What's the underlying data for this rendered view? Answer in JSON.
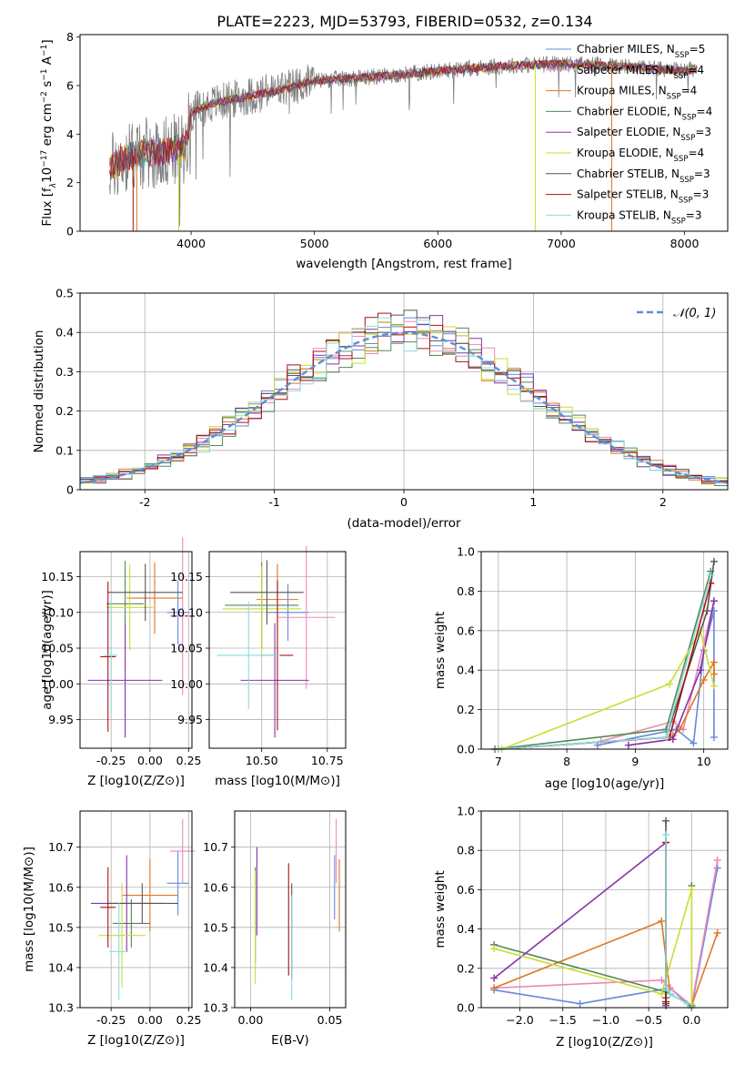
{
  "figure": {
    "title": "PLATE=2223, MJD=53793, FIBERID=0532, z=0.134"
  },
  "colors": [
    "#6688dd",
    "#ee88bb",
    "#dd7722",
    "#558855",
    "#8833aa",
    "#ccdd33",
    "#555555",
    "#aa1111",
    "#88dddd"
  ],
  "chart_data": [
    {
      "panel": "spectrum",
      "type": "line",
      "title": "PLATE=2223, MJD=53793, FIBERID=0532, z=0.134",
      "xlabel": "wavelength [Angstrom, rest frame]",
      "ylabel_parts": [
        "Flux [f",
        "λ",
        "10",
        "−17",
        " erg cm",
        "−2",
        " s",
        "−1",
        " A",
        "−1",
        "]"
      ],
      "xlim": [
        3100,
        8350
      ],
      "ylim": [
        0,
        8.1
      ],
      "xticks": [
        4000,
        5000,
        6000,
        7000,
        8000
      ],
      "yticks": [
        0,
        2,
        4,
        6,
        8
      ],
      "grid": false,
      "legend_position": "top-right",
      "legend": [
        {
          "name": "Chabrier MILES",
          "n": "5"
        },
        {
          "name": "Salpeter MILES",
          "n": "4"
        },
        {
          "name": "Kroupa MILES",
          "n": "4"
        },
        {
          "name": "Chabrier ELODIE",
          "n": "4"
        },
        {
          "name": "Salpeter ELODIE",
          "n": "3"
        },
        {
          "name": "Kroupa ELODIE",
          "n": "4"
        },
        {
          "name": "Chabrier STELIB",
          "n": "3"
        },
        {
          "name": "Salpeter STELIB",
          "n": "3"
        },
        {
          "name": "Kroupa STELIB",
          "n": "3"
        }
      ],
      "continuum": {
        "x": [
          3340,
          3500,
          3650,
          3800,
          3950,
          4000,
          4200,
          4500,
          4800,
          5000,
          5300,
          5600,
          6000,
          6500,
          7000,
          7500,
          8000,
          8100
        ],
        "y": [
          2.6,
          3.1,
          3.2,
          3.3,
          3.4,
          4.9,
          5.3,
          5.6,
          5.9,
          6.2,
          6.3,
          6.4,
          6.6,
          6.8,
          6.9,
          6.8,
          6.6,
          6.7
        ]
      },
      "dropouts": [
        {
          "x": 3530,
          "color_index": 7
        },
        {
          "x": 3560,
          "color_index": 2
        },
        {
          "x": 3900,
          "color_index": 5
        },
        {
          "x": 6790,
          "color_index": 5
        },
        {
          "x": 7410,
          "color_index": 2
        }
      ]
    },
    {
      "panel": "residuals",
      "type": "line",
      "xlabel": "(data-model)/error",
      "ylabel": "Normed distribution",
      "xlim": [
        -2.5,
        2.5
      ],
      "ylim": [
        0,
        0.5
      ],
      "xticks": [
        -2,
        -1,
        0,
        1,
        2
      ],
      "yticks": [
        0.0,
        0.1,
        0.2,
        0.3,
        0.4,
        0.5
      ],
      "grid": true,
      "legend": [
        "𝒩(0, 1)"
      ],
      "legend_position": "top-right",
      "bin_width": 0.1
    },
    {
      "panel": "age_vs_Z",
      "type": "scatter",
      "xlabel": "Z [log10(Z/Z⊙)]",
      "ylabel": "age  [log10(age/yr)]",
      "xlim": [
        -0.45,
        0.27
      ],
      "ylim": [
        9.91,
        10.185
      ],
      "xticks": [
        "-0.25",
        "0.00",
        "0.25"
      ],
      "xtick_values": [
        -0.25,
        0,
        0.25
      ],
      "yticks": [
        "9.95",
        "10.00",
        "10.05",
        "10.10",
        "10.15"
      ],
      "ytick_values": [
        9.95,
        10.0,
        10.05,
        10.1,
        10.15
      ],
      "grid": true,
      "points": [
        {
          "x": 0.18,
          "y": 10.1,
          "xerr": 0.07,
          "yerr": 0.045
        },
        {
          "x": 0.21,
          "y": 10.095,
          "xerr": 0.08,
          "yerr": 0.11
        },
        {
          "x": 0.03,
          "y": 10.12,
          "xerr": 0.18,
          "yerr": 0.05
        },
        {
          "x": -0.16,
          "y": 10.112,
          "xerr": 0.12,
          "yerr": 0.06
        },
        {
          "x": -0.16,
          "y": 10.005,
          "xerr": 0.24,
          "yerr": 0.08
        },
        {
          "x": -0.13,
          "y": 10.107,
          "xerr": 0.15,
          "yerr": 0.06
        },
        {
          "x": -0.03,
          "y": 10.128,
          "xerr": 0.24,
          "yerr": 0.04
        },
        {
          "x": -0.27,
          "y": 10.038,
          "xerr": 0.05,
          "yerr": 0.105
        },
        {
          "x": -0.25,
          "y": 10.04,
          "xerr": 0.04,
          "yerr": 0.08
        }
      ]
    },
    {
      "panel": "age_vs_mass",
      "type": "scatter",
      "xlabel": "mass [log10(M/M⊙)]",
      "ylabel": "",
      "xlim": [
        10.3,
        10.82
      ],
      "ylim": [
        9.91,
        10.185
      ],
      "xticks": [
        "10.50",
        "10.75"
      ],
      "xtick_values": [
        10.5,
        10.75
      ],
      "yticks": [
        "9.95",
        "10.00",
        "10.05",
        "10.10",
        "10.15"
      ],
      "ytick_values": [
        9.95,
        10.0,
        10.05,
        10.1,
        10.15
      ],
      "grid": true,
      "points": [
        {
          "x": 10.6,
          "y": 10.1,
          "xerr": 0.08,
          "yerr": 0.04
        },
        {
          "x": 10.67,
          "y": 10.093,
          "xerr": 0.11,
          "yerr": 0.1
        },
        {
          "x": 10.56,
          "y": 10.118,
          "xerr": 0.08,
          "yerr": 0.05
        },
        {
          "x": 10.5,
          "y": 10.11,
          "xerr": 0.14,
          "yerr": 0.06
        },
        {
          "x": 10.55,
          "y": 10.005,
          "xerr": 0.13,
          "yerr": 0.08
        },
        {
          "x": 10.5,
          "y": 10.105,
          "xerr": 0.15,
          "yerr": 0.06
        },
        {
          "x": 10.52,
          "y": 10.128,
          "xerr": 0.14,
          "yerr": 0.045
        },
        {
          "x": 10.56,
          "y": 10.04,
          "xerr": 0.06,
          "yerr": 0.105
        },
        {
          "x": 10.45,
          "y": 10.04,
          "xerr": 0.12,
          "yerr": 0.075
        }
      ]
    },
    {
      "panel": "mass_vs_Z",
      "type": "scatter",
      "xlabel": "Z [log10(Z/Z⊙)]",
      "ylabel": "mass [log10(M/M⊙)]",
      "xlim": [
        -0.45,
        0.27
      ],
      "ylim": [
        10.3,
        10.79
      ],
      "xticks": [
        "-0.25",
        "0.00",
        "0.25"
      ],
      "xtick_values": [
        -0.25,
        0,
        0.25
      ],
      "yticks": [
        "10.3",
        "10.4",
        "10.5",
        "10.6",
        "10.7"
      ],
      "ytick_values": [
        10.3,
        10.4,
        10.5,
        10.6,
        10.7
      ],
      "grid": true,
      "points": [
        {
          "x": 0.18,
          "y": 10.61,
          "xerr": 0.07,
          "yerr": 0.08
        },
        {
          "x": 0.21,
          "y": 10.69,
          "xerr": 0.08,
          "yerr": 0.08
        },
        {
          "x": 0.0,
          "y": 10.58,
          "xerr": 0.18,
          "yerr": 0.09
        },
        {
          "x": -0.12,
          "y": 10.51,
          "xerr": 0.12,
          "yerr": 0.06
        },
        {
          "x": -0.15,
          "y": 10.56,
          "xerr": 0.23,
          "yerr": 0.12
        },
        {
          "x": -0.18,
          "y": 10.48,
          "xerr": 0.15,
          "yerr": 0.13
        },
        {
          "x": -0.05,
          "y": 10.56,
          "xerr": 0.23,
          "yerr": 0.05
        },
        {
          "x": -0.27,
          "y": 10.55,
          "xerr": 0.05,
          "yerr": 0.1
        },
        {
          "x": -0.2,
          "y": 10.44,
          "xerr": 0.06,
          "yerr": 0.12
        }
      ]
    },
    {
      "panel": "mass_vs_EBV",
      "type": "scatter",
      "xlabel": "E(B-V)",
      "ylabel": "",
      "xlim": [
        -0.01,
        0.06
      ],
      "ylim": [
        10.3,
        10.79
      ],
      "xticks": [
        "0.00",
        "0.05"
      ],
      "xtick_values": [
        0,
        0.05
      ],
      "yticks": [
        "10.3",
        "10.4",
        "10.5",
        "10.6",
        "10.7"
      ],
      "ytick_values": [
        10.3,
        10.4,
        10.5,
        10.6,
        10.7
      ],
      "grid": true,
      "points": [
        {
          "x": 0.053,
          "y": 10.6,
          "yerr": 0.08
        },
        {
          "x": 0.054,
          "y": 10.69,
          "yerr": 0.08
        },
        {
          "x": 0.056,
          "y": 10.58,
          "yerr": 0.09
        },
        {
          "x": 0.003,
          "y": 10.53,
          "yerr": 0.12
        },
        {
          "x": 0.004,
          "y": 10.59,
          "yerr": 0.11
        },
        {
          "x": 0.003,
          "y": 10.5,
          "yerr": 0.14
        },
        {
          "x": 0.026,
          "y": 10.49,
          "yerr": 0.12
        },
        {
          "x": 0.024,
          "y": 10.52,
          "yerr": 0.14
        },
        {
          "x": 0.026,
          "y": 10.45,
          "yerr": 0.13
        }
      ]
    },
    {
      "panel": "weight_vs_age",
      "type": "line",
      "xlabel": "age  [log10(age/yr)]",
      "ylabel": "mass weight",
      "xlim": [
        6.75,
        10.35
      ],
      "ylim": [
        0,
        1.0
      ],
      "xticks": [
        "7",
        "8",
        "9",
        "10"
      ],
      "xtick_values": [
        7,
        8,
        9,
        10
      ],
      "yticks": [
        "0.0",
        "0.2",
        "0.4",
        "0.6",
        "0.8",
        "1.0"
      ],
      "ytick_values": [
        0,
        0.2,
        0.4,
        0.6,
        0.8,
        1.0
      ],
      "grid": true,
      "series": [
        {
          "x": [
            8.45,
            9.6,
            9.85,
            10.0,
            10.15,
            10.15
          ],
          "y": [
            0.02,
            0.1,
            0.03,
            0.5,
            0.7,
            0.06
          ]
        },
        {
          "x": [
            8.5,
            9.55,
            9.7,
            10.15
          ],
          "y": [
            0.04,
            0.14,
            0.1,
            0.75
          ]
        },
        {
          "x": [
            9.55,
            9.65,
            10.0,
            10.15,
            10.15
          ],
          "y": [
            0.07,
            0.1,
            0.35,
            0.44,
            0.38
          ]
        },
        {
          "x": [
            6.95,
            9.45,
            10.1
          ],
          "y": [
            0.0,
            0.1,
            0.9
          ]
        },
        {
          "x": [
            8.9,
            9.55,
            9.95,
            10.15
          ],
          "y": [
            0.02,
            0.05,
            0.4,
            0.75
          ]
        },
        {
          "x": [
            7.05,
            9.5,
            9.95,
            10.15
          ],
          "y": [
            0.0,
            0.33,
            0.6,
            0.32
          ]
        },
        {
          "x": [
            7.0,
            9.45,
            10.05,
            10.15
          ],
          "y": [
            0.0,
            0.06,
            0.7,
            0.95
          ]
        },
        {
          "x": [
            7.0,
            9.5,
            10.1
          ],
          "y": [
            0.0,
            0.06,
            0.84
          ]
        },
        {
          "x": [
            7.0,
            9.45,
            10.1
          ],
          "y": [
            0.0,
            0.06,
            0.88
          ]
        }
      ]
    },
    {
      "panel": "weight_vs_Z",
      "type": "line",
      "xlabel": "Z [log10(Z/Z⊙)]",
      "ylabel": "mass weight",
      "xlim": [
        -2.45,
        0.42
      ],
      "ylim": [
        0,
        1.0
      ],
      "xticks": [
        "−2.0",
        "−1.5",
        "−1.0",
        "−0.5",
        "0.0"
      ],
      "xtick_values": [
        -2,
        -1.5,
        -1,
        -0.5,
        0
      ],
      "yticks": [
        "0.0",
        "0.2",
        "0.4",
        "0.6",
        "0.8",
        "1.0"
      ],
      "ytick_values": [
        0,
        0.2,
        0.4,
        0.6,
        0.8,
        1.0
      ],
      "grid": true,
      "series": [
        {
          "x": [
            -2.3,
            -1.3,
            -0.25,
            0.0,
            0.3
          ],
          "y": [
            0.09,
            0.02,
            0.1,
            0.0,
            0.71
          ]
        },
        {
          "x": [
            -2.3,
            -0.35,
            -0.25,
            0.0,
            0.3
          ],
          "y": [
            0.1,
            0.14,
            0.1,
            0.01,
            0.75
          ]
        },
        {
          "x": [
            -2.3,
            -0.35,
            -0.25,
            0.0,
            0.3
          ],
          "y": [
            0.1,
            0.44,
            0.07,
            0.01,
            0.38
          ]
        },
        {
          "x": [
            -2.3,
            -0.3,
            0.0,
            0.0
          ],
          "y": [
            0.32,
            0.08,
            0.01,
            0.62
          ]
        },
        {
          "x": [
            -2.3,
            -0.3,
            -0.3
          ],
          "y": [
            0.15,
            0.84,
            0.01
          ]
        },
        {
          "x": [
            -2.3,
            -0.35,
            0.0,
            0.0
          ],
          "y": [
            0.3,
            0.07,
            0.6,
            0.02
          ]
        },
        {
          "x": [
            -0.3,
            -0.3,
            -0.3
          ],
          "y": [
            0.95,
            0.02,
            0.05
          ]
        },
        {
          "x": [
            -0.3,
            -0.3
          ],
          "y": [
            0.84,
            0.03
          ]
        },
        {
          "x": [
            -0.3,
            -0.3,
            -0.25,
            -0.05
          ],
          "y": [
            0.88,
            0.1,
            0.07,
            0.02
          ]
        }
      ]
    }
  ]
}
